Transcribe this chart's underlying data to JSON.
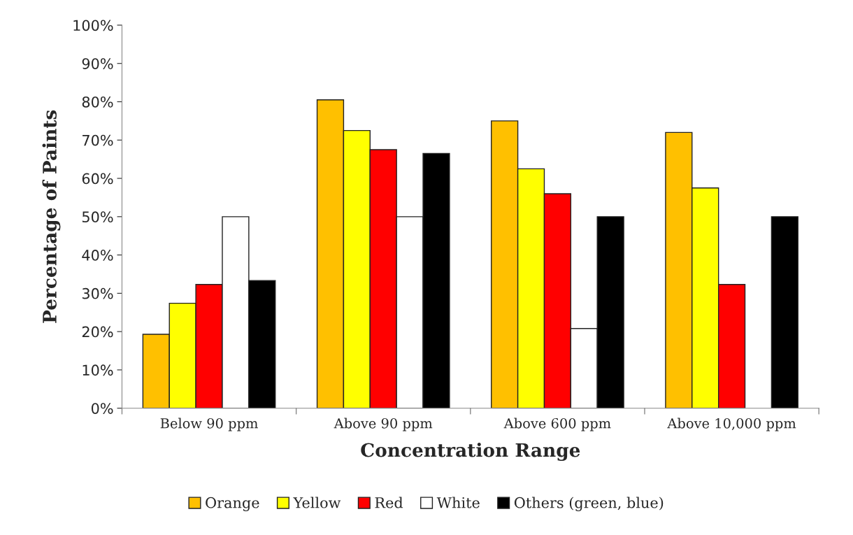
{
  "chart_data": {
    "type": "bar",
    "xlabel": "Concentration Range",
    "ylabel": "Percentage of Paints",
    "categories": [
      "Below 90 ppm",
      "Above 90 ppm",
      "Above 600 ppm",
      "Above 10,000 ppm"
    ],
    "series": [
      {
        "name": "Orange",
        "color": "#ffc000",
        "values": [
          19.3,
          80.5,
          75,
          72
        ]
      },
      {
        "name": "Yellow",
        "color": "#ffff00",
        "values": [
          27.4,
          72.5,
          62.5,
          57.5
        ]
      },
      {
        "name": "Red",
        "color": "#ff0000",
        "values": [
          32.3,
          67.5,
          56,
          32.3
        ]
      },
      {
        "name": "White",
        "color": "#ffffff",
        "values": [
          50,
          50,
          20.8,
          null
        ]
      },
      {
        "name": "Others (green, blue)",
        "color": "#000000",
        "values": [
          33.3,
          66.5,
          50,
          50
        ]
      }
    ],
    "ylim": [
      0,
      100
    ],
    "yticks": [
      {
        "value": 0,
        "label": "0%"
      },
      {
        "value": 10,
        "label": "10%"
      },
      {
        "value": 20,
        "label": "20%"
      },
      {
        "value": 30,
        "label": "30%"
      },
      {
        "value": 40,
        "label": "40%"
      },
      {
        "value": 50,
        "label": "50%"
      },
      {
        "value": 60,
        "label": "60%"
      },
      {
        "value": 70,
        "label": "70%"
      },
      {
        "value": 80,
        "label": "80%"
      },
      {
        "value": 90,
        "label": "90%"
      },
      {
        "value": 100,
        "label": "100%"
      }
    ],
    "grid": false,
    "legend": "bottom"
  }
}
